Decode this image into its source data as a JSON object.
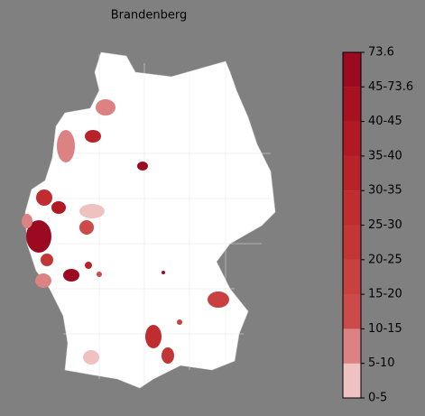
{
  "title": "Brandenberg",
  "colorbar": {
    "labels": [
      "73.6",
      "45-73.6",
      "40-45",
      "35-40",
      "30-35",
      "25-30",
      "20-25",
      "15-20",
      "10-15",
      "5-10",
      "0-5"
    ],
    "colors": [
      "#9b0a20",
      "#a8111f",
      "#b11a25",
      "#b8232a",
      "#bf2d30",
      "#c43636",
      "#c84040",
      "#cc4a4a",
      "#dc8282",
      "#efc1c1",
      "#ffffff"
    ]
  }
}
